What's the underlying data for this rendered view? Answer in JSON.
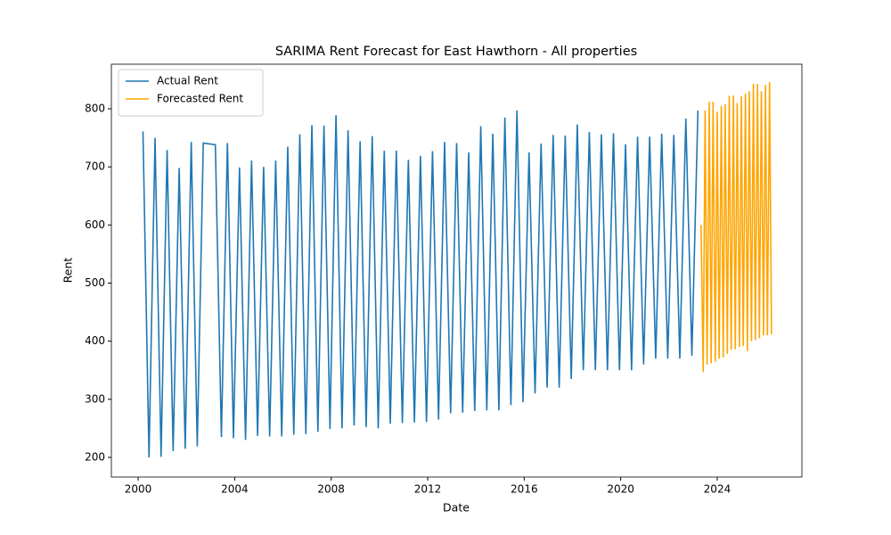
{
  "chart_data": {
    "type": "line",
    "title": "SARIMA Rent Forecast for East Hawthorn - All properties",
    "x_label": "Date",
    "y_label": "Rent",
    "xlim": [
      1998.89,
      2027.51
    ],
    "xticks": [
      2000,
      2004,
      2008,
      2012,
      2016,
      2020,
      2024
    ],
    "ylim": [
      166.2,
      876.7
    ],
    "yticks": [
      200,
      300,
      400,
      500,
      600,
      700,
      800
    ],
    "legend": "upper left",
    "grid": false,
    "series": [
      {
        "name": "Actual Rent",
        "color": "#1f77b4",
        "x": [
          2000.2,
          2000.45,
          2000.7,
          2000.95,
          2001.2,
          2001.45,
          2001.7,
          2001.95,
          2002.2,
          2002.45,
          2002.7,
          2003.2,
          2003.45,
          2003.7,
          2003.95,
          2004.2,
          2004.45,
          2004.7,
          2004.95,
          2005.2,
          2005.45,
          2005.7,
          2005.95,
          2006.2,
          2006.45,
          2006.7,
          2006.95,
          2007.2,
          2007.45,
          2007.7,
          2007.95,
          2008.2,
          2008.45,
          2008.7,
          2008.95,
          2009.2,
          2009.45,
          2009.7,
          2009.95,
          2010.2,
          2010.45,
          2010.7,
          2010.95,
          2011.2,
          2011.45,
          2011.7,
          2011.95,
          2012.2,
          2012.45,
          2012.7,
          2012.95,
          2013.2,
          2013.45,
          2013.7,
          2013.95,
          2014.2,
          2014.45,
          2014.7,
          2014.95,
          2015.2,
          2015.45,
          2015.7,
          2015.95,
          2016.2,
          2016.45,
          2016.7,
          2016.95,
          2017.2,
          2017.45,
          2017.7,
          2017.95,
          2018.2,
          2018.45,
          2018.7,
          2018.95,
          2019.2,
          2019.45,
          2019.7,
          2019.95,
          2020.2,
          2020.45,
          2020.7,
          2020.95,
          2021.2,
          2021.45,
          2021.7,
          2021.95,
          2022.2,
          2022.45,
          2022.7,
          2022.95,
          2023.2
        ],
        "values": [
          761,
          200,
          750,
          201,
          729,
          211,
          698,
          215,
          743,
          219,
          741,
          738,
          235,
          741,
          233,
          699,
          230,
          711,
          237,
          700,
          236,
          711,
          236,
          735,
          239,
          756,
          240,
          772,
          244,
          771,
          249,
          789,
          250,
          763,
          255,
          744,
          252,
          753,
          250,
          728,
          258,
          728,
          259,
          712,
          260,
          719,
          261,
          727,
          265,
          743,
          276,
          741,
          277,
          725,
          280,
          770,
          281,
          757,
          281,
          785,
          290,
          797,
          295,
          725,
          310,
          740,
          320,
          755,
          320,
          754,
          335,
          773,
          350,
          760,
          350,
          756,
          350,
          758,
          350,
          739,
          350,
          752,
          360,
          752,
          370,
          757,
          370,
          755,
          370,
          783,
          375,
          797
        ]
      },
      {
        "name": "Forecasted Rent",
        "color": "#ffa500",
        "x": [
          2023.33,
          2023.42,
          2023.5,
          2023.58,
          2023.67,
          2023.75,
          2023.83,
          2023.92,
          2024,
          2024.08,
          2024.17,
          2024.25,
          2024.33,
          2024.42,
          2024.5,
          2024.58,
          2024.67,
          2024.75,
          2024.83,
          2024.92,
          2025,
          2025.08,
          2025.17,
          2025.25,
          2025.33,
          2025.42,
          2025.5,
          2025.58,
          2025.67,
          2025.75,
          2025.83,
          2025.92,
          2026,
          2026.08,
          2026.17,
          2026.25
        ],
        "values": [
          600,
          347,
          797,
          360,
          812,
          362,
          812,
          365,
          795,
          370,
          805,
          372,
          808,
          378,
          822,
          385,
          823,
          386,
          810,
          390,
          822,
          392,
          826,
          383,
          830,
          400,
          843,
          402,
          843,
          405,
          830,
          410,
          841,
          410,
          846,
          412
        ]
      }
    ]
  }
}
